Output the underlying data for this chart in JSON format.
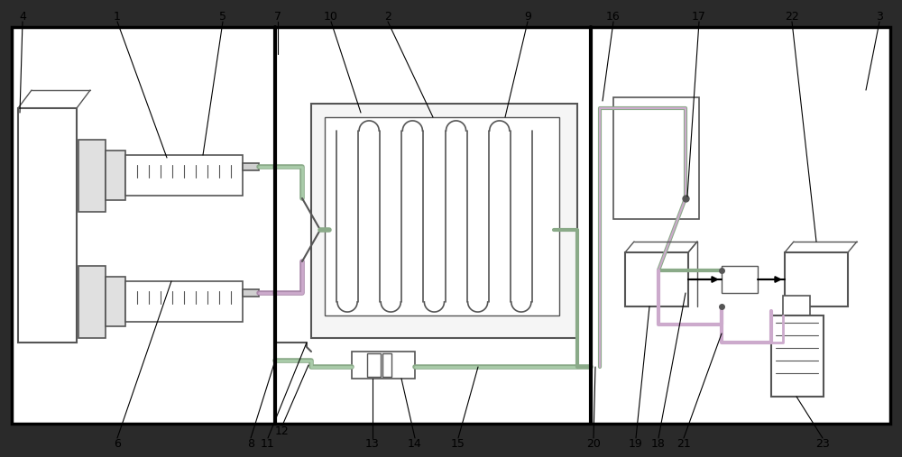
{
  "bg_outer": "#2a2a2a",
  "bg_inner": "#ffffff",
  "lc": "#555555",
  "bc": "#000000",
  "tc_green": "#7a9a7a",
  "tc_purple": "#9a7a9a",
  "tc_gray": "#888888",
  "arrow_color": "#333333",
  "label_fs": 9
}
